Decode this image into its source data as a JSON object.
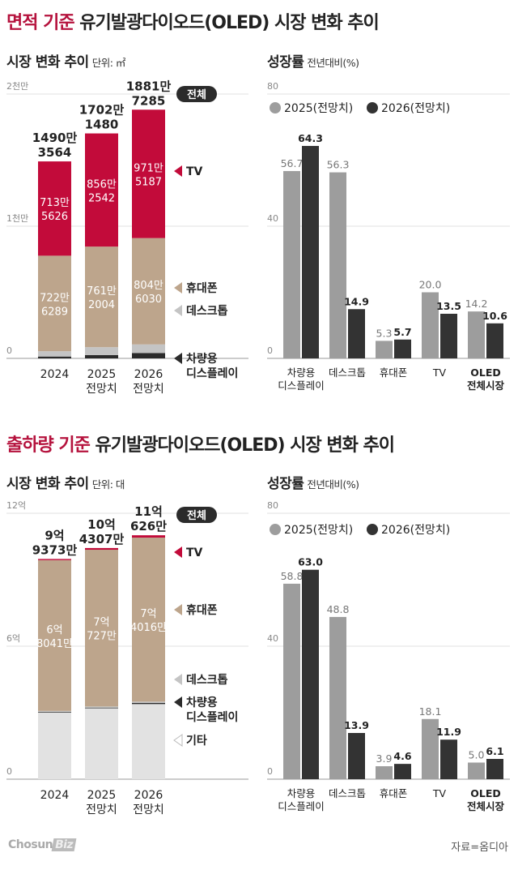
{
  "sections": [
    {
      "title_highlight": "면적 기준",
      "title_rest": "유기발광다이오드(OLED) 시장 변화 추이",
      "left_title": "시장 변화 추이",
      "left_unit": "단위: ㎡",
      "right_title": "성장률",
      "right_unit": "전년대비(%)"
    },
    {
      "title_highlight": "출하량 기준",
      "title_rest": "유기발광다이오드(OLED) 시장 변화 추이",
      "left_title": "시장 변화 추이",
      "left_unit": "단위: 대",
      "right_title": "성장률",
      "right_unit": "전년대비(%)"
    }
  ],
  "footer": {
    "logo": "ChosunBiz",
    "source": "자료=옴디아"
  },
  "colors": {
    "tv": "#c20b3a",
    "phone": "#bda58c",
    "desktop": "#c4c4c4",
    "vehicle": "#2b2b2b",
    "other": "#e2e2e2",
    "growth_2025": "#9d9d9d",
    "growth_2026": "#333333",
    "highlight": "#b5123d"
  },
  "chart_data": [
    {
      "type": "bar",
      "stacked": true,
      "categories": [
        [
          "2024"
        ],
        [
          "2025",
          "전망치"
        ],
        [
          "2026",
          "전망치"
        ]
      ],
      "ylim": [
        0,
        20000000
      ],
      "yticks": [
        0,
        10000000,
        20000000
      ],
      "ytick_labels": [
        "0",
        "1천만",
        "2천만"
      ],
      "total_badge": "전체",
      "totals": [
        14903564,
        17021480,
        18817285
      ],
      "total_labels": [
        [
          "1490만",
          "3564"
        ],
        [
          "1702만",
          "1480"
        ],
        [
          "1881만",
          "7285"
        ]
      ],
      "series": [
        {
          "name": "차량용 디스플레이",
          "legend": [
            "차량용",
            "디스플레이"
          ],
          "color": "#2b2b2b",
          "values": [
            140000,
            250000,
            400000
          ],
          "labels": null
        },
        {
          "name": "데스크톱",
          "legend": [
            "데스크톱"
          ],
          "color": "#c4c4c4",
          "values": [
            401649,
            596934,
            656068
          ],
          "labels": null
        },
        {
          "name": "휴대폰",
          "legend": [
            "휴대폰"
          ],
          "color": "#bda58c",
          "values": [
            7226289,
            7612004,
            8046030
          ],
          "labels": [
            [
              "722만",
              "6289"
            ],
            [
              "761만",
              "2004"
            ],
            [
              "804만",
              "6030"
            ]
          ]
        },
        {
          "name": "TV",
          "legend": [
            "TV"
          ],
          "color": "#c20b3a",
          "values": [
            7135626,
            8562542,
            9715187
          ],
          "labels": [
            [
              "713만",
              "5626"
            ],
            [
              "856만",
              "2542"
            ],
            [
              "971만",
              "5187"
            ]
          ]
        }
      ],
      "grid": true
    },
    {
      "type": "bar",
      "categories": [
        [
          "차량용",
          "디스플레이"
        ],
        [
          "데스크톱"
        ],
        [
          "휴대폰"
        ],
        [
          "TV"
        ],
        [
          "OLED",
          "전체시장"
        ]
      ],
      "ylim": [
        0,
        80
      ],
      "yticks": [
        0,
        40,
        80
      ],
      "ytick_labels": [
        "0",
        "40",
        "80"
      ],
      "series": [
        {
          "name": "2025(전망치)",
          "color": "#9d9d9d",
          "values": [
            56.7,
            56.3,
            5.3,
            20.0,
            14.2
          ],
          "labels": [
            "56.7",
            "56.3",
            "5.3",
            "20.0",
            "14.2"
          ]
        },
        {
          "name": "2026(전망치)",
          "color": "#333333",
          "values": [
            64.3,
            14.9,
            5.7,
            13.5,
            10.6
          ],
          "labels": [
            "64.3",
            "14.9",
            "5.7",
            "13.5",
            "10.6"
          ]
        }
      ],
      "grid": true
    },
    {
      "type": "bar",
      "stacked": true,
      "categories": [
        [
          "2024"
        ],
        [
          "2025",
          "전망치"
        ],
        [
          "2026",
          "전망치"
        ]
      ],
      "ylim": [
        0,
        1200000000
      ],
      "yticks": [
        0,
        600000000,
        1200000000
      ],
      "ytick_labels": [
        "0",
        "6억",
        "12억"
      ],
      "total_badge": "전체",
      "totals": [
        993730000,
        1043070000,
        1100626000
      ],
      "total_labels": [
        [
          "9억",
          "9373만"
        ],
        [
          "10억",
          "4307만"
        ],
        [
          "11억",
          "626만"
        ]
      ],
      "series": [
        {
          "name": "기타",
          "legend": [
            "기타"
          ],
          "color": "#e2e2e2",
          "values": [
            300000000,
            320000000,
            339000000
          ],
          "labels": null
        },
        {
          "name": "차량용 디스플레이",
          "legend": [
            "차량용",
            "디스플레이"
          ],
          "color": "#2b2b2b",
          "values": [
            3000000,
            3000000,
            5000000
          ],
          "labels": null
        },
        {
          "name": "데스크톱",
          "legend": [
            "데스크톱"
          ],
          "color": "#c4c4c4",
          "values": [
            5000000,
            5000000,
            6000000
          ],
          "labels": null
        },
        {
          "name": "휴대폰",
          "legend": [
            "휴대폰"
          ],
          "color": "#bda58c",
          "values": [
            680410000,
            707270000,
            740160000
          ],
          "labels": [
            [
              "6억",
              "8041만"
            ],
            [
              "7억",
              "727만"
            ],
            [
              "7억",
              "4016만"
            ]
          ]
        },
        {
          "name": "TV",
          "legend": [
            "TV"
          ],
          "color": "#c20b3a",
          "values": [
            5320000,
            7800000,
            10466000
          ],
          "labels": null
        }
      ],
      "grid": true
    },
    {
      "type": "bar",
      "categories": [
        [
          "차량용",
          "디스플레이"
        ],
        [
          "데스크톱"
        ],
        [
          "휴대폰"
        ],
        [
          "TV"
        ],
        [
          "OLED",
          "전체시장"
        ]
      ],
      "ylim": [
        0,
        80
      ],
      "yticks": [
        0,
        40,
        80
      ],
      "ytick_labels": [
        "0",
        "40",
        "80"
      ],
      "series": [
        {
          "name": "2025(전망치)",
          "color": "#9d9d9d",
          "values": [
            58.8,
            48.8,
            3.9,
            18.1,
            5.0
          ],
          "labels": [
            "58.8",
            "48.8",
            "3.9",
            "18.1",
            "5.0"
          ]
        },
        {
          "name": "2026(전망치)",
          "color": "#333333",
          "values": [
            63.0,
            13.9,
            4.6,
            11.9,
            6.1
          ],
          "labels": [
            "63.0",
            "13.9",
            "4.6",
            "11.9",
            "6.1"
          ]
        }
      ],
      "grid": true
    }
  ]
}
